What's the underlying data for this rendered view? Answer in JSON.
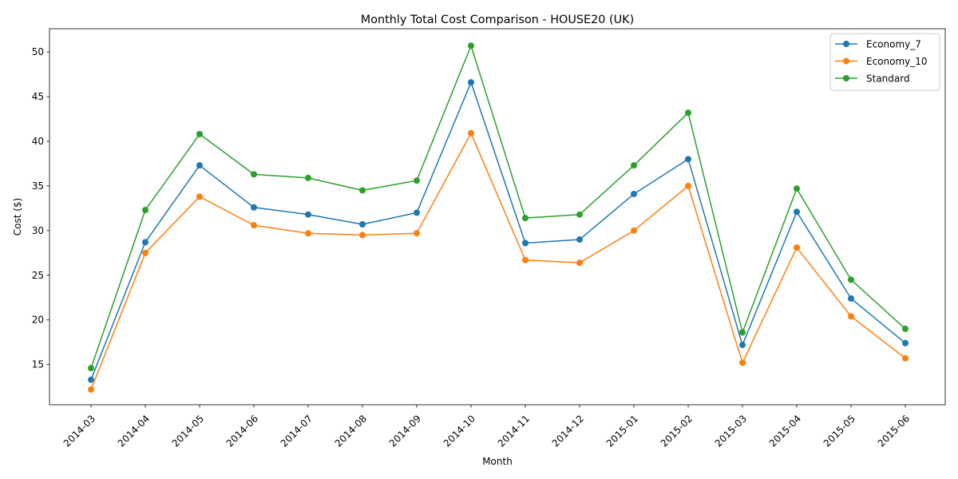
{
  "chart_data": {
    "type": "line",
    "title": "Monthly Total Cost Comparison - HOUSE20 (UK)",
    "xlabel": "Month",
    "ylabel": "Cost ($)",
    "categories": [
      "2014-03",
      "2014-04",
      "2014-05",
      "2014-06",
      "2014-07",
      "2014-08",
      "2014-09",
      "2014-10",
      "2014-11",
      "2014-12",
      "2015-01",
      "2015-02",
      "2015-03",
      "2015-04",
      "2015-05",
      "2015-06"
    ],
    "y_ticks": [
      15,
      20,
      25,
      30,
      35,
      40,
      45,
      50
    ],
    "ylim": [
      10.5,
      52.6
    ],
    "grid": false,
    "legend_position": "top-right",
    "markers": "circle",
    "series": [
      {
        "name": "Economy_7",
        "color": "#1f77b4",
        "values": [
          13.3,
          28.7,
          37.3,
          32.6,
          31.8,
          30.7,
          32.0,
          46.6,
          28.6,
          29.0,
          34.1,
          38.0,
          17.2,
          32.1,
          22.4,
          17.4
        ]
      },
      {
        "name": "Economy_10",
        "color": "#ff7f0e",
        "values": [
          12.2,
          27.5,
          33.8,
          30.6,
          29.7,
          29.5,
          29.7,
          40.9,
          26.7,
          26.4,
          30.0,
          35.0,
          15.2,
          28.1,
          20.4,
          15.7
        ]
      },
      {
        "name": "Standard",
        "color": "#2ca02c",
        "values": [
          14.6,
          32.3,
          40.8,
          36.3,
          35.9,
          34.5,
          35.6,
          50.7,
          31.4,
          31.8,
          37.3,
          43.2,
          18.6,
          34.7,
          24.5,
          19.0
        ]
      }
    ]
  }
}
